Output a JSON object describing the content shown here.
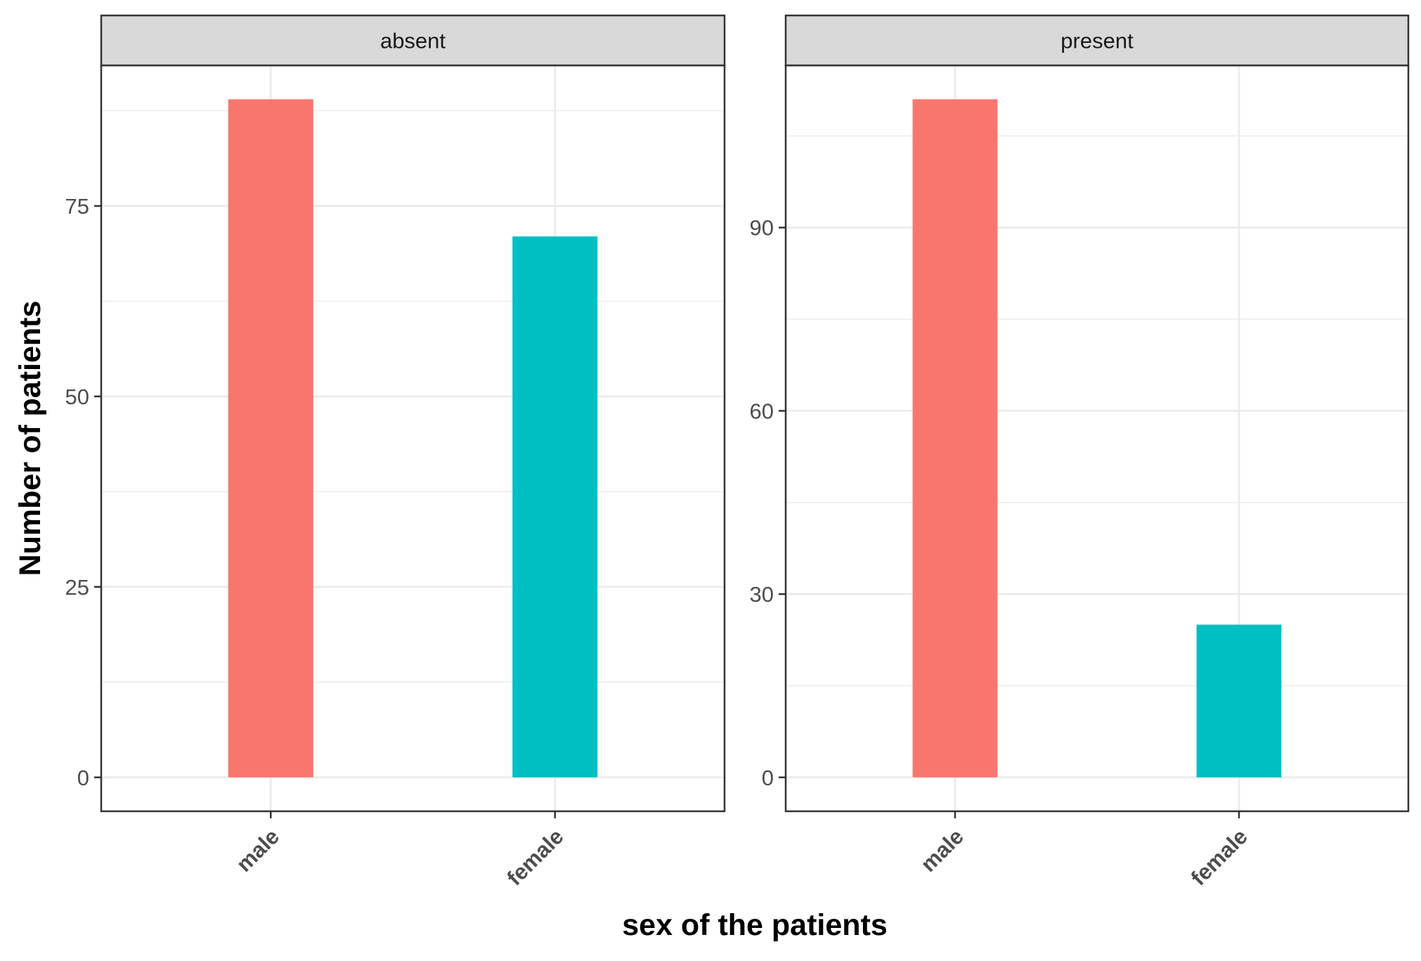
{
  "chart_data": {
    "type": "bar",
    "facet_variable_values": [
      "absent",
      "present"
    ],
    "xlabel": "sex of the patients",
    "ylabel": "Number of patients",
    "categories": [
      "male",
      "female"
    ],
    "colors": {
      "male": "#F8766D",
      "female": "#00BFC4",
      "strip_fill": "#D9D9D9",
      "panel_border": "#333333",
      "grid": "#EBEBEB",
      "tick_label": "#4D4D4D"
    },
    "grid": true,
    "legend": "none",
    "panels": [
      {
        "strip_label": "absent",
        "ylim": [
          -4.45,
          93.45
        ],
        "yticks": [
          0,
          25,
          50,
          75
        ],
        "y_tick_labels": [
          "0",
          "25",
          "50",
          "75"
        ],
        "y_minor_ticks": [
          12.5,
          37.5,
          62.5,
          87.5
        ],
        "values": [
          89,
          71
        ]
      },
      {
        "strip_label": "present",
        "ylim": [
          -5.55,
          116.55
        ],
        "yticks": [
          0,
          30,
          60,
          90
        ],
        "y_tick_labels": [
          "0",
          "30",
          "60",
          "90"
        ],
        "y_minor_ticks": [
          15,
          45,
          75,
          105
        ],
        "values": [
          111,
          25
        ]
      }
    ]
  }
}
